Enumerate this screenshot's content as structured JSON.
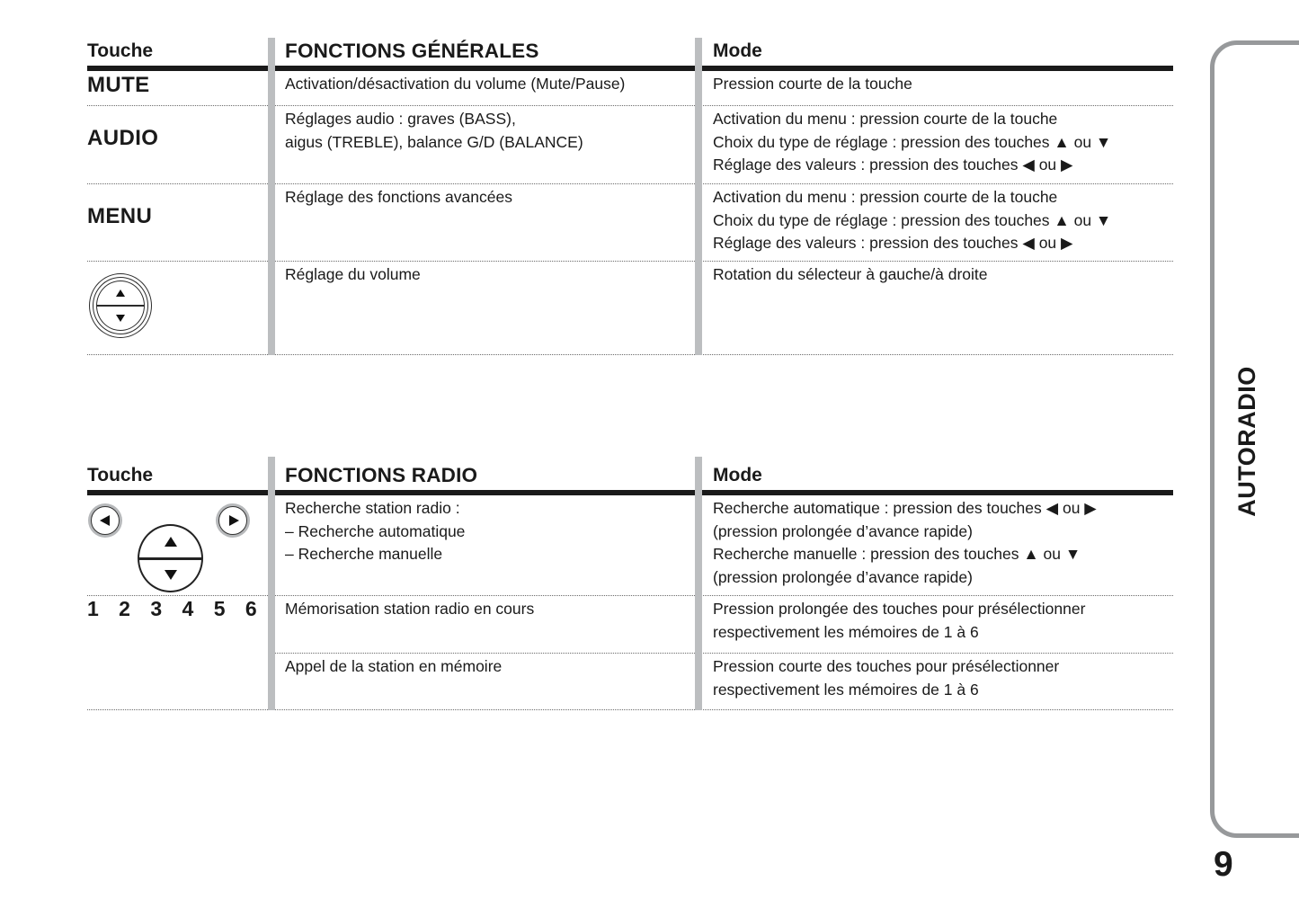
{
  "page": {
    "number": "9",
    "side_tab_label": "AUTORADIO"
  },
  "colors": {
    "text": "#1a1a1a",
    "header_rule": "#1a1a1a",
    "column_bar": "#bcbec0",
    "tab_border": "#97999b"
  },
  "table_generales": {
    "header": {
      "touche": "Touche",
      "fonctions": "FONCTIONS GÉNÉRALES",
      "mode": "Mode"
    },
    "rows": {
      "mute": {
        "key": "MUTE",
        "fonctions": [
          "Activation/désactivation du volume (Mute/Pause)"
        ],
        "mode": [
          "Pression courte de la touche"
        ]
      },
      "audio": {
        "key": "AUDIO",
        "fonctions": [
          "Réglages audio : graves (BASS),",
          "aigus (TREBLE), balance G/D (BALANCE)"
        ],
        "mode": [
          "Activation du menu : pression courte de la touche",
          "Choix du type de réglage : pression des touches ▲ ou ▼",
          "Réglage des valeurs : pression des touches ◀ ou ▶"
        ]
      },
      "menu": {
        "key": "MENU",
        "fonctions": [
          "Réglage des fonctions avancées"
        ],
        "mode": [
          "Activation du menu : pression courte de la touche",
          "Choix du type de réglage : pression des touches ▲ ou ▼",
          "Réglage des valeurs : pression des touches ◀ ou ▶"
        ]
      },
      "volume": {
        "key_icon": "volume-rocker-knob",
        "fonctions": [
          "Réglage du volume"
        ],
        "mode": [
          "Rotation du sélecteur à gauche/à droite"
        ]
      }
    }
  },
  "table_radio": {
    "header": {
      "touche": "Touche",
      "fonctions": "FONCTIONS RADIO",
      "mode": "Mode"
    },
    "rows": {
      "recherche": {
        "key_icon": "seek-left-seek-right-and-tune-knob",
        "fonctions": [
          "Recherche station radio :",
          "– Recherche automatique",
          "– Recherche manuelle"
        ],
        "mode": [
          "Recherche automatique : pression des touches ◀ ou ▶",
          "(pression prolongée d’avance rapide)",
          "Recherche manuelle : pression des touches ▲ ou ▼",
          "(pression prolongée d’avance rapide)"
        ]
      },
      "memorisation": {
        "key": "1 2 3 4 5 6",
        "fonctions": [
          "Mémorisation station radio en cours"
        ],
        "mode": [
          "Pression prolongée des touches pour présélectionner",
          "respectivement les mémoires de 1 à 6"
        ]
      },
      "appel": {
        "fonctions": [
          "Appel de la station en mémoire"
        ],
        "mode": [
          "Pression courte des touches pour présélectionner",
          "respectivement les mémoires de 1 à 6"
        ]
      }
    }
  }
}
